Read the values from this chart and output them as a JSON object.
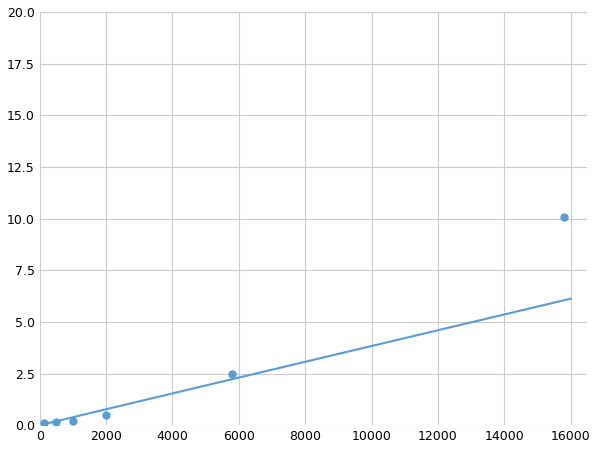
{
  "x": [
    125,
    500,
    1000,
    2000,
    5800,
    15800
  ],
  "y": [
    0.1,
    0.15,
    0.2,
    0.5,
    2.5,
    10.1
  ],
  "line_color": "#5b9bd5",
  "marker_color": "#5b9bd5",
  "marker_size": 5,
  "xlim": [
    0,
    16500
  ],
  "ylim": [
    0,
    20
  ],
  "xticks": [
    0,
    2000,
    4000,
    6000,
    8000,
    10000,
    12000,
    14000,
    16000
  ],
  "yticks": [
    0.0,
    2.5,
    5.0,
    7.5,
    10.0,
    12.5,
    15.0,
    17.5,
    20.0
  ],
  "grid": true,
  "background_color": "#ffffff",
  "line_width": 1.5
}
